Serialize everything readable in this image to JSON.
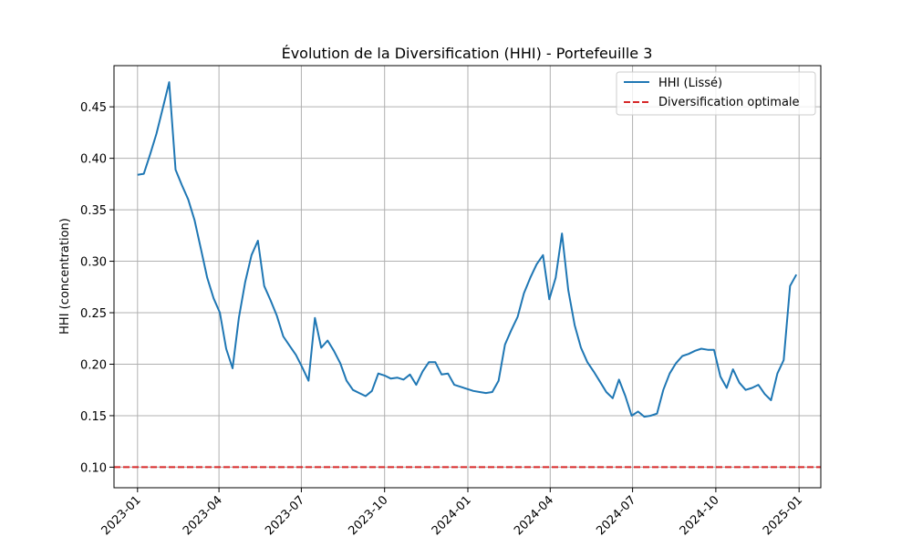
{
  "colors": {
    "series": "#1f77b4",
    "reference": "#d62728",
    "grid": "#b0b0b0"
  },
  "chart_data": {
    "type": "line",
    "title": "Évolution de la Diversification (HHI) - Portefeuille 3",
    "xlabel": "",
    "ylabel": "HHI (concentration)",
    "grid": true,
    "legend_position": "top-right",
    "xlim": [
      "2022-12-06",
      "2025-01-25"
    ],
    "ylim": [
      0.08,
      0.49
    ],
    "x_ticks": [
      "2023-01-01",
      "2023-04-01",
      "2023-07-01",
      "2023-10-01",
      "2024-01-01",
      "2024-04-01",
      "2024-07-01",
      "2024-10-01",
      "2025-01-01"
    ],
    "x_tick_labels": [
      "2023-01",
      "2023-04",
      "2023-07",
      "2023-10",
      "2024-01",
      "2024-04",
      "2024-07",
      "2024-10",
      "2025-01"
    ],
    "y_ticks": [
      0.1,
      0.15,
      0.2,
      0.25,
      0.3,
      0.35,
      0.4,
      0.45
    ],
    "y_tick_labels": [
      "0.10",
      "0.15",
      "0.20",
      "0.25",
      "0.30",
      "0.35",
      "0.40",
      "0.45"
    ],
    "series": [
      {
        "name": "HHI (Lissé)",
        "style": "solid",
        "x": [
          "2023-01-01",
          "2023-01-08",
          "2023-01-15",
          "2023-01-22",
          "2023-01-29",
          "2023-02-05",
          "2023-02-12",
          "2023-02-19",
          "2023-02-26",
          "2023-03-05",
          "2023-03-12",
          "2023-03-19",
          "2023-03-26",
          "2023-04-02",
          "2023-04-09",
          "2023-04-16",
          "2023-04-23",
          "2023-04-30",
          "2023-05-07",
          "2023-05-14",
          "2023-05-21",
          "2023-05-28",
          "2023-06-04",
          "2023-06-11",
          "2023-06-18",
          "2023-06-25",
          "2023-07-02",
          "2023-07-09",
          "2023-07-16",
          "2023-07-23",
          "2023-07-30",
          "2023-08-06",
          "2023-08-13",
          "2023-08-20",
          "2023-08-27",
          "2023-09-03",
          "2023-09-10",
          "2023-09-17",
          "2023-09-24",
          "2023-10-01",
          "2023-10-08",
          "2023-10-15",
          "2023-10-22",
          "2023-10-29",
          "2023-11-05",
          "2023-11-12",
          "2023-11-19",
          "2023-11-26",
          "2023-12-03",
          "2023-12-10",
          "2023-12-17",
          "2023-12-24",
          "2023-12-31",
          "2024-01-07",
          "2024-01-14",
          "2024-01-21",
          "2024-01-28",
          "2024-02-04",
          "2024-02-11",
          "2024-02-18",
          "2024-02-25",
          "2024-03-03",
          "2024-03-10",
          "2024-03-17",
          "2024-03-24",
          "2024-03-31",
          "2024-04-07",
          "2024-04-14",
          "2024-04-21",
          "2024-04-28",
          "2024-05-05",
          "2024-05-12",
          "2024-05-19",
          "2024-05-26",
          "2024-06-02",
          "2024-06-09",
          "2024-06-16",
          "2024-06-23",
          "2024-06-30",
          "2024-07-07",
          "2024-07-14",
          "2024-07-21",
          "2024-07-28",
          "2024-08-04",
          "2024-08-11",
          "2024-08-18",
          "2024-08-25",
          "2024-09-01",
          "2024-09-08",
          "2024-09-15",
          "2024-09-22",
          "2024-09-29",
          "2024-10-06",
          "2024-10-13",
          "2024-10-20",
          "2024-10-27",
          "2024-11-03",
          "2024-11-10",
          "2024-11-17",
          "2024-11-24",
          "2024-12-01",
          "2024-12-08",
          "2024-12-15",
          "2024-12-22",
          "2024-12-29"
        ],
        "y": [
          0.384,
          0.385,
          0.404,
          0.424,
          0.449,
          0.474,
          0.389,
          0.374,
          0.36,
          0.34,
          0.312,
          0.284,
          0.264,
          0.25,
          0.215,
          0.196,
          0.245,
          0.28,
          0.306,
          0.32,
          0.276,
          0.262,
          0.247,
          0.227,
          0.218,
          0.209,
          0.197,
          0.184,
          0.245,
          0.216,
          0.223,
          0.213,
          0.201,
          0.184,
          0.175,
          0.172,
          0.169,
          0.174,
          0.191,
          0.189,
          0.186,
          0.187,
          0.185,
          0.19,
          0.18,
          0.193,
          0.202,
          0.202,
          0.19,
          0.191,
          0.18,
          0.178,
          0.176,
          0.174,
          0.173,
          0.172,
          0.173,
          0.184,
          0.219,
          0.233,
          0.246,
          0.269,
          0.284,
          0.297,
          0.306,
          0.263,
          0.284,
          0.327,
          0.272,
          0.238,
          0.216,
          0.202,
          0.193,
          0.183,
          0.173,
          0.167,
          0.185,
          0.169,
          0.15,
          0.154,
          0.149,
          0.15,
          0.152,
          0.175,
          0.191,
          0.201,
          0.208,
          0.21,
          0.213,
          0.215,
          0.214,
          0.214,
          0.188,
          0.177,
          0.195,
          0.182,
          0.175,
          0.177,
          0.18,
          0.171,
          0.165,
          0.191,
          0.204,
          0.276,
          0.287
        ]
      },
      {
        "name": "Diversification optimale",
        "style": "dashed",
        "y_constant": 0.1
      }
    ]
  }
}
